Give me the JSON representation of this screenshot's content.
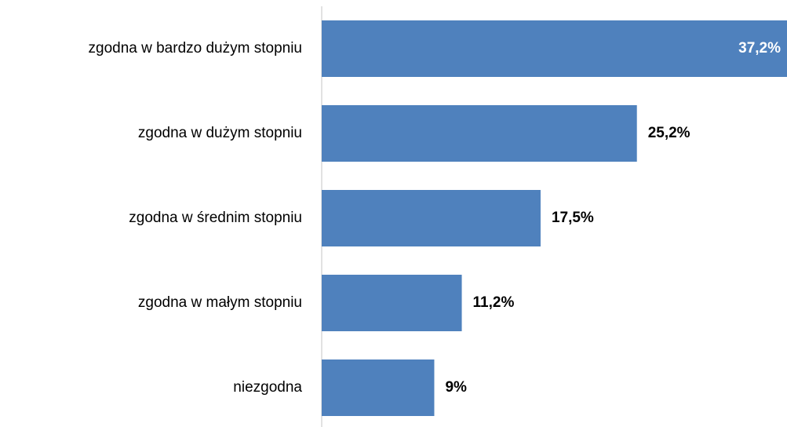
{
  "chart_data": {
    "type": "bar",
    "orientation": "horizontal",
    "categories": [
      "zgodna w bardzo dużym stopniu",
      "zgodna w dużym stopniu",
      "zgodna w średnim stopniu",
      "zgodna w małym stopniu",
      "niezgodna"
    ],
    "values": [
      37.2,
      25.2,
      17.5,
      11.2,
      9
    ],
    "value_labels": [
      "37,2%",
      "25,2%",
      "17,5%",
      "11,2%",
      "9%"
    ],
    "color": "#4f81bd"
  }
}
